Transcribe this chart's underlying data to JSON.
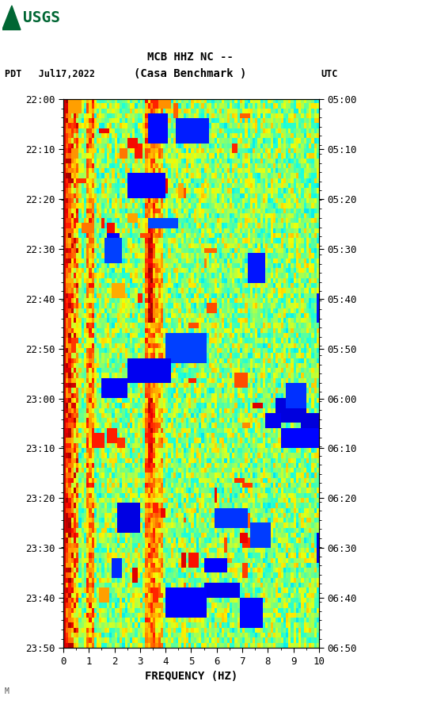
{
  "title_line1": "MCB HHZ NC --",
  "title_line2": "(Casa Benchmark )",
  "left_label": "PDT   Jul17,2022",
  "right_label": "UTC",
  "xlabel": "FREQUENCY (HZ)",
  "freq_min": 0,
  "freq_max": 10,
  "ytick_pdt": [
    "22:00",
    "22:10",
    "22:20",
    "22:30",
    "22:40",
    "22:50",
    "23:00",
    "23:10",
    "23:20",
    "23:30",
    "23:40",
    "23:50"
  ],
  "ytick_utc": [
    "05:00",
    "05:10",
    "05:20",
    "05:30",
    "05:40",
    "05:50",
    "06:00",
    "06:10",
    "06:20",
    "06:30",
    "06:40",
    "06:50"
  ],
  "xticks": [
    0,
    1,
    2,
    3,
    4,
    5,
    6,
    7,
    8,
    9,
    10
  ],
  "bg_color": "#ffffff",
  "usgs_color": "#006633",
  "seed": 42,
  "n_time": 110,
  "n_freq": 100
}
